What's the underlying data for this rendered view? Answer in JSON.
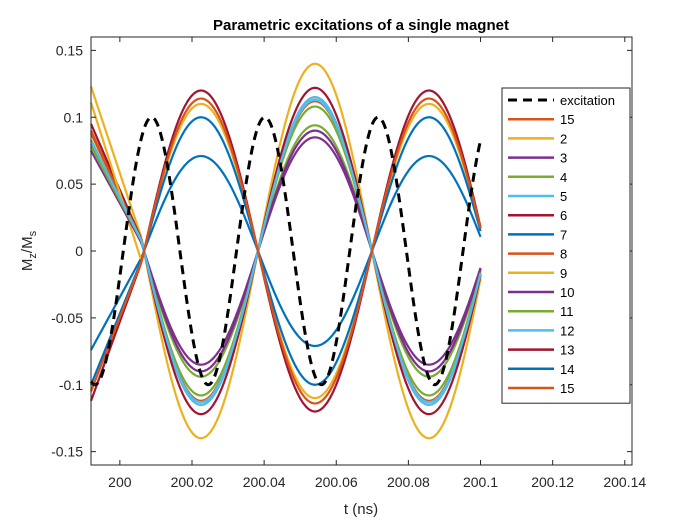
{
  "chart_data": {
    "type": "line",
    "title": "Parametric excitations of a single magnet",
    "xlabel": "t (ns)",
    "ylabel_main": "M",
    "ylabel_sub1": "z",
    "ylabel_mid": "/M",
    "ylabel_sub2": "s",
    "xlim": [
      199.992,
      200.142
    ],
    "ylim": [
      -0.16,
      0.16
    ],
    "xticks": [
      200,
      200.02,
      200.04,
      200.06,
      200.08,
      200.1,
      200.12,
      200.14
    ],
    "xtick_labels": [
      "200",
      "200.02",
      "200.04",
      "200.06",
      "200.08",
      "200.1",
      "200.12",
      "200.14"
    ],
    "yticks": [
      -0.15,
      -0.1,
      -0.05,
      0,
      0.05,
      0.1,
      0.15
    ],
    "ytick_labels": [
      "-0.15",
      "-0.1",
      "-0.05",
      "0",
      "0.05",
      "0.1",
      "0.15"
    ],
    "legend_position": "right, inside",
    "excitation": {
      "name": "excitation",
      "color": "#000000",
      "style": "dashed",
      "amplitude": 0.1,
      "peaks_t": [
        200.0088,
        200.0403,
        200.0716
      ],
      "troughs_t": [
        200.0245,
        200.056,
        200.0873
      ],
      "t_range": [
        199.992,
        200.1
      ]
    },
    "response_period_ns": 0.0632,
    "response_t_range": [
      199.992,
      200.1
    ],
    "series": [
      {
        "name": "15",
        "color": "#D95319",
        "amplitude": 0.115,
        "sign": 1,
        "start_value": 0.09
      },
      {
        "name": "2",
        "color": "#EDB120",
        "amplitude": 0.14,
        "sign": 1,
        "start_value": 0.123
      },
      {
        "name": "3",
        "color": "#7E2F8E",
        "amplitude": 0.085,
        "sign": 1,
        "start_value": 0.08
      },
      {
        "name": "4",
        "color": "#77AC30",
        "amplitude": 0.094,
        "sign": 1,
        "start_value": 0.083
      },
      {
        "name": "5",
        "color": "#4DBEEE",
        "amplitude": 0.115,
        "sign": 1,
        "start_value": 0.076
      },
      {
        "name": "6",
        "color": "#A2142F",
        "amplitude": 0.122,
        "sign": 1,
        "start_value": 0.095
      },
      {
        "name": "7",
        "color": "#0072BD",
        "amplitude": 0.071,
        "sign": -1,
        "start_value": -0.074
      },
      {
        "name": "8",
        "color": "#D95319",
        "amplitude": 0.112,
        "sign": 1,
        "start_value": 0.088
      },
      {
        "name": "9",
        "color": "#EDB120",
        "amplitude": 0.11,
        "sign": -1,
        "start_value": 0.111
      },
      {
        "name": "10",
        "color": "#7E2F8E",
        "amplitude": 0.09,
        "sign": 1,
        "start_value": 0.075
      },
      {
        "name": "11",
        "color": "#77AC30",
        "amplitude": 0.108,
        "sign": 1,
        "start_value": 0.078
      },
      {
        "name": "12",
        "color": "#4DBEEE",
        "amplitude": 0.113,
        "sign": 1,
        "start_value": 0.082
      },
      {
        "name": "13",
        "color": "#A2142F",
        "amplitude": 0.12,
        "sign": -1,
        "start_value": -0.112
      },
      {
        "name": "14",
        "color": "#0072BD",
        "amplitude": 0.1,
        "sign": -1,
        "start_value": -0.1
      },
      {
        "name": "15",
        "color": "#D95319",
        "amplitude": 0.114,
        "sign": -1,
        "start_value": -0.105
      }
    ]
  }
}
